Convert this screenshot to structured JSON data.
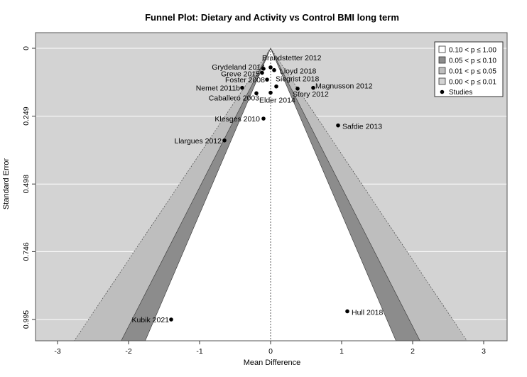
{
  "chart_data": {
    "type": "scatter",
    "title": "Funnel Plot: Dietary and Activity vs Control BMI long term",
    "xlabel": "Mean Difference",
    "ylabel": "Standard Error",
    "xlim": [
      -3.3,
      3.35
    ],
    "ylim": [
      0,
      0.995
    ],
    "y_reversed": true,
    "x_ticks": [
      "-3",
      "-2",
      "-1",
      "0",
      "1",
      "2",
      "3"
    ],
    "x_tick_values": [
      -3,
      -2,
      -1,
      0,
      1,
      2,
      3
    ],
    "y_ticks": [
      "0",
      "0.249",
      "0.498",
      "0.746",
      "0.995"
    ],
    "y_tick_values": [
      0,
      0.249,
      0.498,
      0.746,
      0.995
    ],
    "center": 0,
    "background_color": "#d3d3d3",
    "grid": true,
    "contours": [
      {
        "label": "0.10 < p ≤ 1.00",
        "z": 1.645,
        "color": "#ffffff"
      },
      {
        "label": "0.05 < p ≤ 0.10",
        "z": 1.96,
        "color": "#8c8c8c"
      },
      {
        "label": "0.01 < p ≤ 0.05",
        "z": 2.576,
        "color": "#bebebe"
      },
      {
        "label": "0.00 < p ≤ 0.01",
        "z": null,
        "color": "#d3d3d3"
      }
    ],
    "legend": {
      "position": "top-right",
      "entries": [
        "0.10 < p ≤ 1.00",
        "0.05 < p ≤ 0.10",
        "0.01 < p ≤ 0.05",
        "0.00 < p ≤ 0.01",
        "Studies"
      ]
    },
    "studies": [
      {
        "name": "Brandstetter 2012",
        "x": 0.0,
        "y": 0.07
      },
      {
        "name": "Grydeland 2014",
        "x": -0.1,
        "y": 0.075
      },
      {
        "name": "Lloyd 2018",
        "x": 0.05,
        "y": 0.08
      },
      {
        "name": "Greve 2015",
        "x": -0.12,
        "y": 0.09
      },
      {
        "name": "Foster 2008",
        "x": -0.05,
        "y": 0.115
      },
      {
        "name": "Siegrist 2018",
        "x": 0.08,
        "y": 0.14
      },
      {
        "name": "Magnusson 2012",
        "x": 0.6,
        "y": 0.145
      },
      {
        "name": "Nemet 2011b",
        "x": -0.4,
        "y": 0.145
      },
      {
        "name": "Story 2012",
        "x": 0.38,
        "y": 0.148
      },
      {
        "name": "Caballero 2003",
        "x": -0.2,
        "y": 0.165
      },
      {
        "name": "Elder 2014",
        "x": 0.0,
        "y": 0.163
      },
      {
        "name": "Klesges 2010",
        "x": -0.1,
        "y": 0.258
      },
      {
        "name": "Safdie 2013",
        "x": 0.95,
        "y": 0.283
      },
      {
        "name": "Llargues 2012",
        "x": -0.65,
        "y": 0.338
      },
      {
        "name": "Hull 2018",
        "x": 1.08,
        "y": 0.965
      },
      {
        "name": "Kubik 2021",
        "x": -1.4,
        "y": 0.995
      }
    ]
  }
}
